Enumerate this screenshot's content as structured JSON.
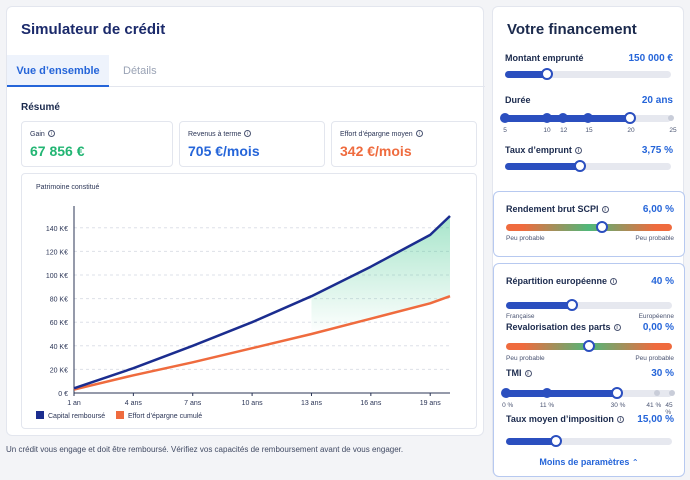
{
  "simulator": {
    "title": "Simulateur de crédit",
    "tabs": [
      "Vue d’ensemble",
      "Détails"
    ],
    "summary_label": "Résumé",
    "kpis": [
      {
        "label": "Gain",
        "value": "67 856 €",
        "color": "#22b573"
      },
      {
        "label": "Revenus à terme",
        "value": "705 €/mois",
        "color": "#2565d9"
      },
      {
        "label": "Effort d’épargne moyen",
        "value": "342 €/mois",
        "color": "#ef6b3e"
      }
    ],
    "chart_title": "Patrimoine constitué",
    "disclaimer": "Un crédit vous engage et doit être remboursé. Vérifiez vos capacités de remboursement avant de vous engager."
  },
  "chart_data": {
    "type": "line",
    "title": "Patrimoine constitué",
    "x_ticks": [
      "1 an",
      "4 ans",
      "7 ans",
      "10 ans",
      "13 ans",
      "16 ans",
      "19 ans"
    ],
    "y_ticks": [
      "0 €",
      "20 K€",
      "40 K€",
      "60 K€",
      "80 K€",
      "100 K€",
      "120 K€",
      "140 K€"
    ],
    "ylim": [
      0,
      150
    ],
    "xlim": [
      1,
      20
    ],
    "grid": true,
    "legend_position": "bottom-left",
    "series": [
      {
        "name": "Capital remboursé",
        "color": "#1b2d8f",
        "x": [
          1,
          4,
          7,
          10,
          13,
          16,
          19,
          20
        ],
        "y": [
          4,
          21,
          40,
          60,
          82,
          107,
          134,
          150
        ]
      },
      {
        "name": "Effort d’épargne cumulé",
        "color": "#ef6b3e",
        "x": [
          1,
          4,
          7,
          10,
          13,
          16,
          19,
          20
        ],
        "y": [
          3,
          15,
          26,
          38,
          50,
          63,
          76,
          82
        ]
      }
    ]
  },
  "financement": {
    "title": "Votre financement",
    "montant": {
      "label": "Montant emprunté",
      "value": "150 000 €",
      "level": 0.25
    },
    "duree": {
      "label": "Durée",
      "value": "20 ans",
      "ticks": [
        "5",
        "10",
        "12",
        "15",
        "20",
        "25"
      ],
      "tick_values": [
        5,
        10,
        12,
        15,
        20,
        25
      ],
      "selected": 20
    },
    "taux": {
      "label": "Taux d’emprunt",
      "value": "3,75 %",
      "level": 0.45
    },
    "rendement": {
      "label": "Rendement brut SCPI",
      "value": "6,00 %",
      "level": 0.58,
      "left": "Peu probable",
      "right": "Peu probable"
    },
    "repartition": {
      "label": "Répartition européenne",
      "value": "40 %",
      "level": 0.4,
      "left": "Française",
      "right": "Européenne"
    },
    "revalorisation": {
      "label": "Revalorisation des parts",
      "value": "0,00 %",
      "level": 0.5,
      "left": "Peu probable",
      "right": "Peu probable"
    },
    "tmi": {
      "label": "TMI",
      "value": "30 %",
      "ticks": [
        "0 %",
        "11 %",
        "30 %",
        "41 %",
        "45 %"
      ],
      "tick_values": [
        0,
        11,
        30,
        41,
        45
      ],
      "selected": 30
    },
    "taux_moyen": {
      "label": "Taux moyen d’imposition",
      "value": "15,00 %",
      "level": 0.3
    },
    "moins": "Moins de paramètres"
  }
}
